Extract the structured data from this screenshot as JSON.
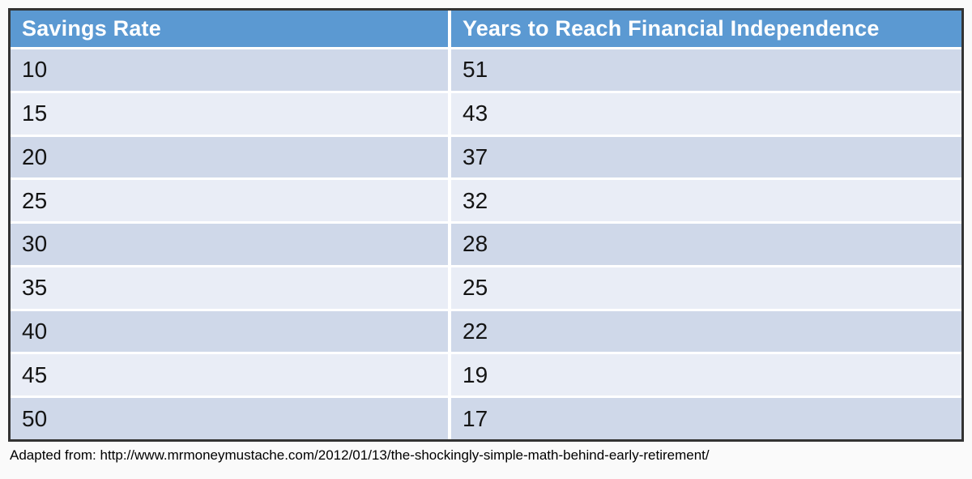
{
  "table": {
    "header": {
      "col1": "Savings Rate",
      "col2": "Years to Reach Financial Independence"
    },
    "rows": [
      {
        "rate": "10",
        "years": "51"
      },
      {
        "rate": "15",
        "years": "43"
      },
      {
        "rate": "20",
        "years": "37"
      },
      {
        "rate": "25",
        "years": "32"
      },
      {
        "rate": "30",
        "years": "28"
      },
      {
        "rate": "35",
        "years": "25"
      },
      {
        "rate": "40",
        "years": "22"
      },
      {
        "rate": "45",
        "years": "19"
      },
      {
        "rate": "50",
        "years": "17"
      }
    ]
  },
  "caption": "Adapted from: http://www.mrmoneymustache.com/2012/01/13/the-shockingly-simple-math-behind-early-retirement/",
  "colors": {
    "header_bg": "#5b99d2",
    "header_text": "#ffffff",
    "row_odd_bg": "#cfd8e9",
    "row_even_bg": "#e9edf6",
    "separator": "#ffffff",
    "outer_border": "#333333",
    "cell_text": "#141414",
    "page_bg": "#fafafa"
  },
  "chart_data": {
    "type": "table",
    "title": "",
    "columns": [
      "Savings Rate",
      "Years to Reach Financial Independence"
    ],
    "rows": [
      [
        10,
        51
      ],
      [
        15,
        43
      ],
      [
        20,
        37
      ],
      [
        25,
        32
      ],
      [
        30,
        28
      ],
      [
        35,
        25
      ],
      [
        40,
        22
      ],
      [
        45,
        19
      ],
      [
        50,
        17
      ]
    ],
    "annotations": [
      "Adapted from: http://www.mrmoneymustache.com/2012/01/13/the-shockingly-simple-math-behind-early-retirement/"
    ]
  }
}
